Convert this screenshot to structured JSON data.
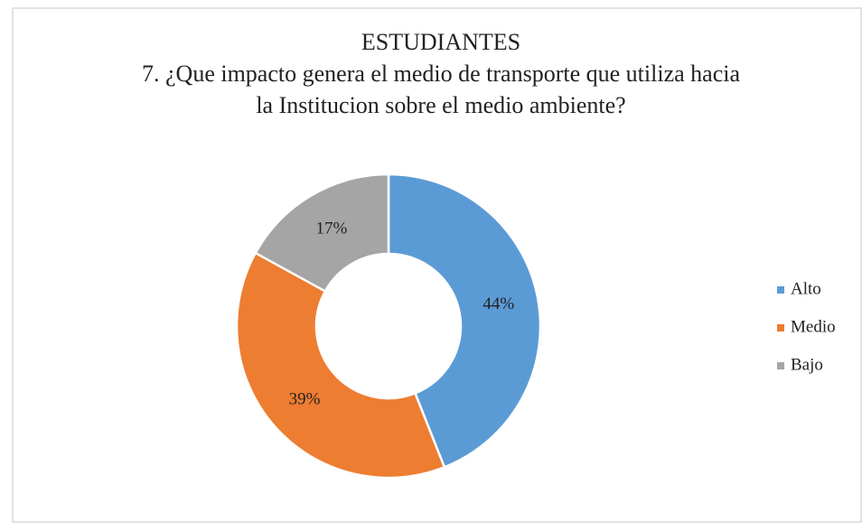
{
  "chart_data": {
    "type": "donut",
    "title": "ESTUDIANTES",
    "subtitle": [
      "7. ¿Que impacto genera el medio de transporte que utiliza hacia",
      "la Institucion sobre el medio ambiente?"
    ],
    "categories": [
      "Alto",
      "Medio",
      "Bajo"
    ],
    "values": [
      44,
      39,
      17
    ],
    "value_labels": [
      "44%",
      "39%",
      "17%"
    ],
    "colors": [
      "#5b9bd5",
      "#ed7d31",
      "#a5a5a5"
    ],
    "legend": "right"
  }
}
